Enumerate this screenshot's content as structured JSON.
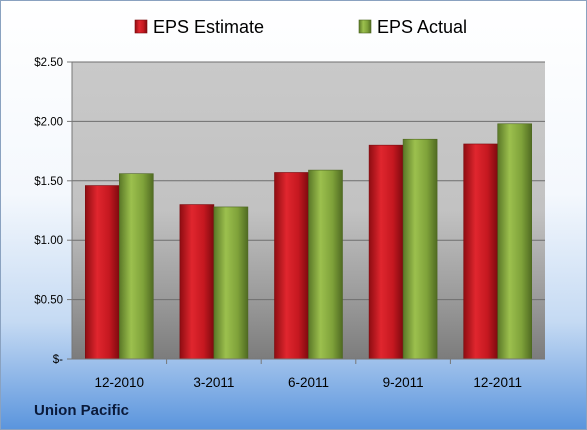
{
  "chart_data": {
    "type": "bar",
    "categories": [
      "12-2010",
      "3-2011",
      "6-2011",
      "9-2011",
      "12-2011"
    ],
    "series": [
      {
        "name": "EPS Estimate",
        "values": [
          1.46,
          1.3,
          1.57,
          1.8,
          1.81
        ],
        "color": "#c0141c"
      },
      {
        "name": "EPS Actual",
        "values": [
          1.56,
          1.28,
          1.59,
          1.85,
          1.98
        ],
        "color": "#7fa23a"
      }
    ],
    "ylim": [
      0,
      2.5
    ],
    "yticks": [
      {
        "value": 0,
        "label": "$-"
      },
      {
        "value": 0.5,
        "label": "$0.50"
      },
      {
        "value": 1.0,
        "label": "$1.00"
      },
      {
        "value": 1.5,
        "label": "$1.50"
      },
      {
        "value": 2.0,
        "label": "$2.00"
      },
      {
        "value": 2.5,
        "label": "$2.50"
      }
    ],
    "grid": true,
    "legend_position": "top"
  },
  "footer": {
    "company": "Union Pacific"
  }
}
